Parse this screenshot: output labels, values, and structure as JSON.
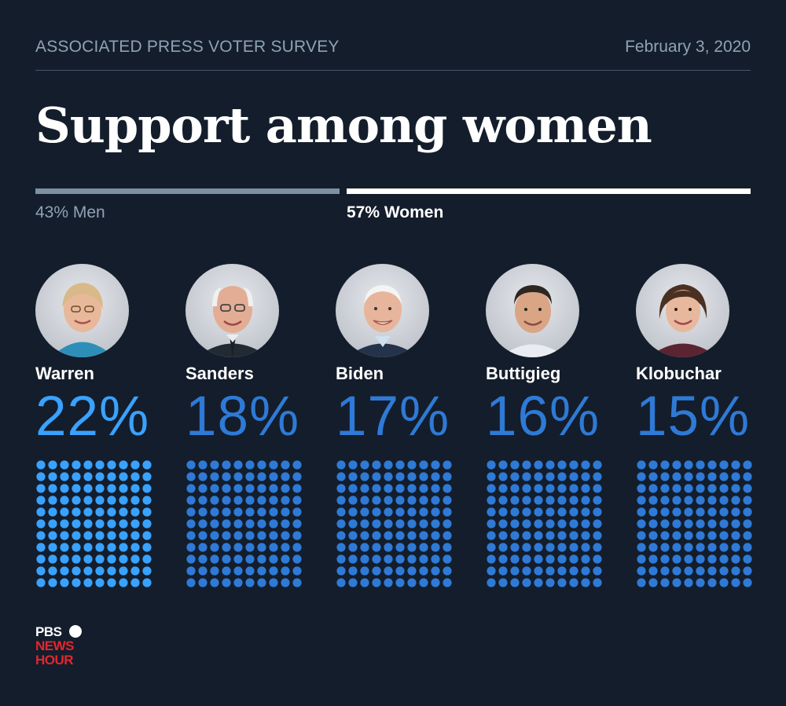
{
  "header": {
    "source": "ASSOCIATED PRESS VOTER SURVEY",
    "date": "February 3, 2020"
  },
  "title": "Support among women",
  "split": {
    "men_label": "43% Men",
    "women_label": "57% Women",
    "men_share": 43,
    "women_share": 57
  },
  "chart_data": {
    "type": "bar",
    "title": "Support among women",
    "categories": [
      "Warren",
      "Sanders",
      "Biden",
      "Buttigieg",
      "Klobuchar"
    ],
    "values": [
      22,
      18,
      17,
      16,
      15
    ],
    "value_labels": [
      "22%",
      "18%",
      "17%",
      "16%",
      "15%"
    ],
    "unit": "%",
    "encoding": "dot grid",
    "grid": false,
    "legend": "none",
    "colors": {
      "leader": "#39a2ff",
      "others": "#2e7ad6"
    }
  },
  "candidates": [
    {
      "name": "Warren",
      "pct_label": "22%",
      "photo": "warren-photo"
    },
    {
      "name": "Sanders",
      "pct_label": "18%",
      "photo": "sanders-photo"
    },
    {
      "name": "Biden",
      "pct_label": "17%",
      "photo": "biden-photo"
    },
    {
      "name": "Buttigieg",
      "pct_label": "16%",
      "photo": "buttigieg-photo"
    },
    {
      "name": "Klobuchar",
      "pct_label": "15%",
      "photo": "klobuchar-photo"
    }
  ],
  "logo": {
    "line1": "PBS",
    "line2": "NEWS",
    "line3": "HOUR",
    "icon": "pbs-head-icon"
  },
  "colors": {
    "background": "#141d2b",
    "men_bar": "#7e91a2",
    "women_bar": "#ffffff",
    "muted_text": "#8fa3b4",
    "logo_red": "#e3262f"
  }
}
